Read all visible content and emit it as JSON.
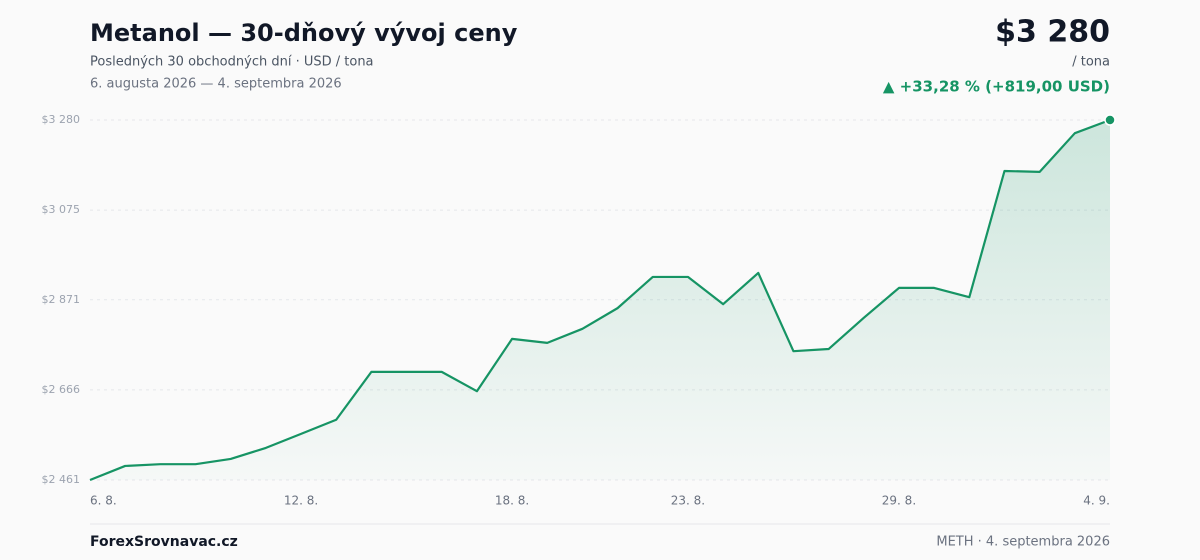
{
  "header": {
    "price": "$3 280",
    "unit": "/ tona",
    "change": "▲ +33,28 % (+819,00 USD)"
  },
  "chart_data": {
    "type": "line",
    "title": "Metanol — 30-dňový vývoj ceny",
    "subtitle": "Posledných 30 obchodných dní · USD / tona",
    "date_range": "6. augusta 2026 — 4. septembra 2026",
    "categories": [
      "6. 8.",
      null,
      null,
      null,
      null,
      null,
      "12. 8.",
      null,
      null,
      null,
      null,
      null,
      "18. 8.",
      null,
      null,
      null,
      null,
      "23. 8.",
      null,
      null,
      null,
      null,
      null,
      "29. 8.",
      null,
      null,
      null,
      null,
      null,
      "4. 9."
    ],
    "series": [
      {
        "name": "Metanol",
        "color": "#169464",
        "values": [
          2461,
          2493,
          2497,
          2497,
          2509,
          2534,
          2566,
          2598,
          2707,
          2707,
          2707,
          2663,
          2782,
          2773,
          2805,
          2852,
          2923,
          2923,
          2861,
          2932,
          2754,
          2759,
          2830,
          2898,
          2898,
          2877,
          3164,
          3162,
          3250,
          3280
        ]
      }
    ],
    "ylim": [
      2461,
      3280
    ],
    "yticks": [
      {
        "value": 2461,
        "label": "$2 461"
      },
      {
        "value": 2666,
        "label": "$2 666"
      },
      {
        "value": 2871,
        "label": "$2 871"
      },
      {
        "value": 3075,
        "label": "$3 075"
      },
      {
        "value": 3280,
        "label": "$3 280"
      }
    ],
    "grid": true
  },
  "footer": {
    "brand": "ForexSrovnavac.cz",
    "source": "METH · 4. septembra 2026"
  }
}
